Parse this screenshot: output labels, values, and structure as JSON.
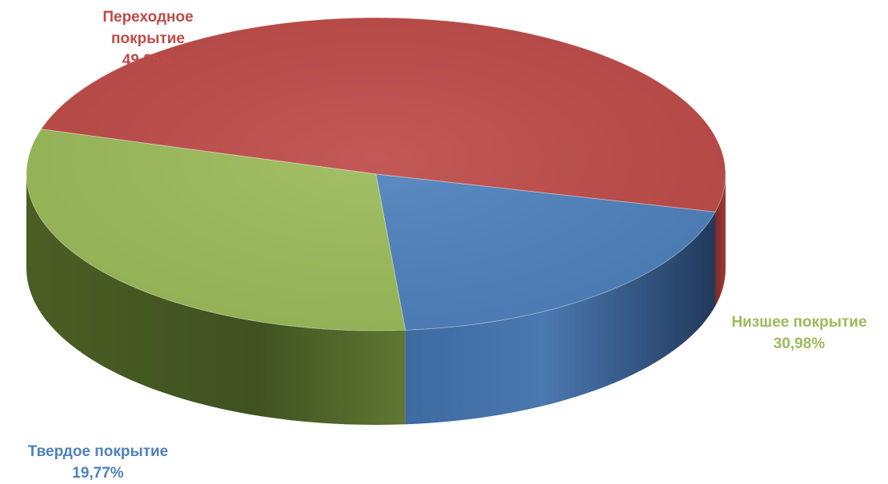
{
  "chart_data": {
    "type": "pie",
    "style": "3d",
    "slices": [
      {
        "label_lines": [
          "Переходное",
          "покрытие"
        ],
        "percent_label": "49,25%",
        "value": 49.25,
        "color": "#be4b48"
      },
      {
        "label_lines": [
          "Низшее покрытие"
        ],
        "percent_label": "30,98%",
        "value": 30.98,
        "color": "#9bbb59"
      },
      {
        "label_lines": [
          "Твердое покрытие"
        ],
        "percent_label": "19,77%",
        "value": 19.77,
        "color": "#4f81bd"
      }
    ]
  }
}
